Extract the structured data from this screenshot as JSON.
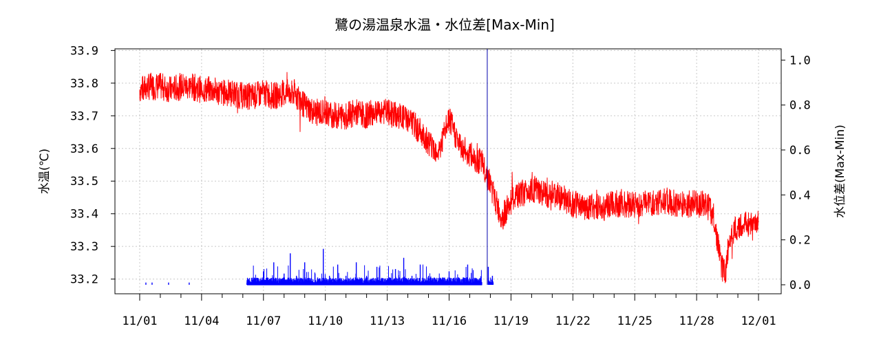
{
  "chart_data": {
    "type": "line",
    "title": "鷺の湯温泉水温・水位差[Max-Min]",
    "ylabel_left": "水温(℃)",
    "ylabel_right": "水位差(Max-Min)",
    "x_tick_labels": [
      "11/01",
      "11/04",
      "11/07",
      "11/10",
      "11/13",
      "11/16",
      "11/19",
      "11/22",
      "11/25",
      "11/28",
      "12/01"
    ],
    "x_ticks_days": [
      0,
      3,
      6,
      9,
      12,
      15,
      18,
      21,
      24,
      27,
      30
    ],
    "y_left_ticks": [
      33.2,
      33.3,
      33.4,
      33.5,
      33.6,
      33.7,
      33.8,
      33.9
    ],
    "y_left_tick_labels": [
      "33.2",
      "33.3",
      "33.4",
      "33.5",
      "33.6",
      "33.7",
      "33.8",
      "33.9"
    ],
    "y_left_lim": [
      33.155,
      33.905
    ],
    "y_right_ticks": [
      0.0,
      0.2,
      0.4,
      0.6,
      0.8,
      1.0
    ],
    "y_right_tick_labels": [
      "0.0",
      "0.2",
      "0.4",
      "0.6",
      "0.8",
      "1.0"
    ],
    "y_right_lim": [
      -0.04,
      1.05
    ],
    "x_lim_days": [
      -1.2,
      31.1
    ],
    "grid": true,
    "series": [
      {
        "axis": "left",
        "color": "#ff0000",
        "x": [
          0,
          0.5,
          1,
          1.5,
          2,
          2.5,
          3,
          3.5,
          4,
          4.5,
          5,
          5.5,
          6,
          6.5,
          7,
          7.5,
          8,
          8.5,
          9,
          9.5,
          10,
          10.5,
          11,
          11.5,
          12,
          12.5,
          13,
          13.5,
          14,
          14.5,
          15,
          15.5,
          16,
          16.5,
          16.8,
          17,
          17.2,
          17.4,
          17.6,
          18,
          18.5,
          19,
          19.5,
          20,
          20.5,
          21,
          21.5,
          22,
          22.5,
          23,
          23.5,
          24,
          24.5,
          25,
          25.5,
          26,
          26.5,
          27,
          27.3,
          27.6,
          27.8,
          28,
          28.2,
          28.4,
          28.6,
          29,
          29.5,
          30
        ],
        "y": [
          33.78,
          33.79,
          33.79,
          33.78,
          33.79,
          33.79,
          33.78,
          33.78,
          33.77,
          33.77,
          33.76,
          33.76,
          33.77,
          33.76,
          33.77,
          33.77,
          33.73,
          33.71,
          33.71,
          33.7,
          33.7,
          33.71,
          33.7,
          33.72,
          33.71,
          33.7,
          33.69,
          33.66,
          33.62,
          33.59,
          33.69,
          33.61,
          33.58,
          33.56,
          33.53,
          33.49,
          33.45,
          33.41,
          33.39,
          33.44,
          33.46,
          33.48,
          33.46,
          33.46,
          33.45,
          33.43,
          33.42,
          33.42,
          33.42,
          33.43,
          33.43,
          33.43,
          33.43,
          33.43,
          33.44,
          33.43,
          33.43,
          33.43,
          33.43,
          33.42,
          33.4,
          33.32,
          33.24,
          33.22,
          33.33,
          33.36,
          33.37,
          33.37
        ]
      },
      {
        "axis": "right",
        "color": "#0000ff",
        "x": [
          0.3,
          0.6,
          1.4,
          2.4,
          5.2,
          5.5,
          6,
          6.5,
          7,
          7.3,
          7.6,
          8,
          8.5,
          8.9,
          9.2,
          9.6,
          10,
          10.5,
          11,
          11.5,
          12,
          12.4,
          12.8,
          13.2,
          13.6,
          14,
          14.5,
          15,
          15.5,
          15.9,
          16.5,
          16.9,
          17.1
        ],
        "y": [
          0.01,
          0.01,
          0.01,
          0.01,
          0.01,
          0.02,
          0.06,
          0.1,
          0.05,
          0.14,
          0.04,
          0.1,
          0.05,
          0.16,
          0.04,
          0.09,
          0.04,
          0.1,
          0.04,
          0.08,
          0.03,
          0.07,
          0.12,
          0.04,
          0.09,
          0.04,
          0.03,
          0.06,
          0.03,
          0.09,
          0.03,
          0.08,
          0.04
        ]
      }
    ],
    "vline_day": 16.85,
    "vline_color": "#0000aa"
  }
}
